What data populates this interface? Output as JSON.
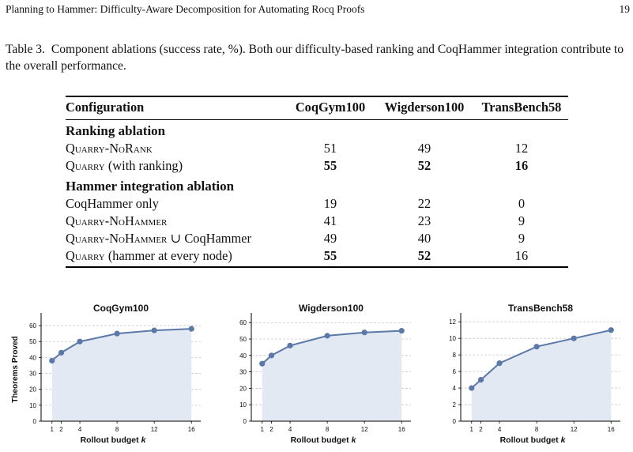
{
  "running_head": {
    "title": "Planning to Hammer: Difficulty-Aware Decomposition for Automating Rocq Proofs",
    "page": "19"
  },
  "caption": {
    "label": "Table 3.",
    "text": "Component ablations (success rate, %). Both our difficulty-based ranking and CoqHammer integration contribute to the overall performance."
  },
  "table": {
    "headers": [
      "Configuration",
      "CoqGym100",
      "Wigderson100",
      "TransBench58"
    ],
    "sections": [
      {
        "title": "Ranking ablation",
        "rows": [
          {
            "pre": "",
            "sc1": "Quarry",
            "mid": "-",
            "sc2": "NoRank",
            "post": "",
            "values": [
              "51",
              "49",
              "12"
            ],
            "bold": [
              false,
              false,
              false
            ]
          },
          {
            "pre": "",
            "sc1": "Quarry",
            "mid": " (with ranking)",
            "sc2": "",
            "post": "",
            "values": [
              "55",
              "52",
              "16"
            ],
            "bold": [
              true,
              true,
              true
            ]
          }
        ]
      },
      {
        "title": "Hammer integration ablation",
        "rows": [
          {
            "pre": "CoqHammer only",
            "sc1": "",
            "mid": "",
            "sc2": "",
            "post": "",
            "values": [
              "19",
              "22",
              "0"
            ],
            "bold": [
              false,
              false,
              false
            ]
          },
          {
            "pre": "",
            "sc1": "Quarry",
            "mid": "-",
            "sc2": "NoHammer",
            "post": "",
            "values": [
              "41",
              "23",
              "9"
            ],
            "bold": [
              false,
              false,
              false
            ]
          },
          {
            "pre": "",
            "sc1": "Quarry",
            "mid": "-",
            "sc2": "NoHammer",
            "post": " ∪ CoqHammer",
            "values": [
              "49",
              "40",
              "9"
            ],
            "bold": [
              false,
              false,
              false
            ]
          },
          {
            "pre": "",
            "sc1": "Quarry",
            "mid": " (hammer at every node)",
            "sc2": "",
            "post": "",
            "values": [
              "55",
              "52",
              "16"
            ],
            "bold": [
              true,
              true,
              false
            ]
          }
        ]
      }
    ]
  },
  "chart_data": [
    {
      "type": "area",
      "title": "CoqGym100",
      "xlabel": "Rollout budget k",
      "ylabel": "Theorems Proved",
      "x": [
        1,
        2,
        4,
        8,
        12,
        16
      ],
      "y": [
        38,
        43,
        50,
        55,
        57,
        58
      ],
      "ylim": [
        0,
        65
      ],
      "yticks": [
        0,
        10,
        20,
        30,
        40,
        50,
        60
      ],
      "grid": true,
      "color": "#5b79a8",
      "fill": "#e3e9f2"
    },
    {
      "type": "area",
      "title": "Wigderson100",
      "xlabel": "Rollout budget k",
      "ylabel": "",
      "x": [
        1,
        2,
        4,
        8,
        12,
        16
      ],
      "y": [
        35,
        40,
        46,
        52,
        54,
        55
      ],
      "ylim": [
        0,
        63
      ],
      "yticks": [
        0,
        10,
        20,
        30,
        40,
        50,
        60
      ],
      "grid": true,
      "color": "#5b79a8",
      "fill": "#e3e9f2"
    },
    {
      "type": "area",
      "title": "TransBench58",
      "xlabel": "Rollout budget k",
      "ylabel": "",
      "x": [
        1,
        2,
        4,
        8,
        12,
        16
      ],
      "y": [
        4,
        5,
        7,
        9,
        10,
        11
      ],
      "ylim": [
        0,
        12.5
      ],
      "yticks": [
        0,
        2,
        4,
        6,
        8,
        10,
        12
      ],
      "grid": true,
      "color": "#5b79a8",
      "fill": "#e3e9f2"
    }
  ]
}
